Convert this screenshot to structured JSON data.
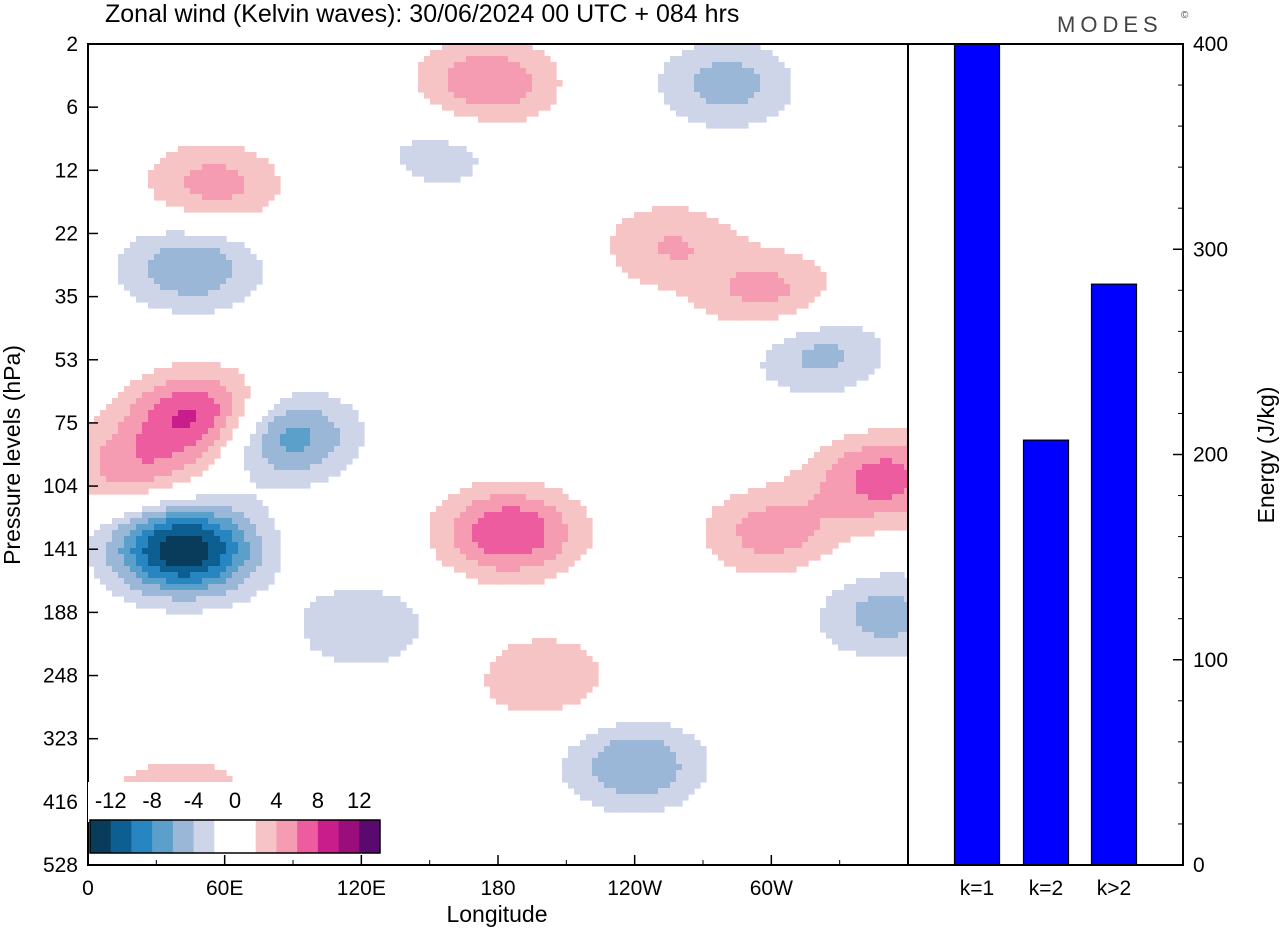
{
  "chart_data": [
    {
      "type": "heatmap",
      "title": "Zonal wind (Kelvin waves):  30/06/2024  00 UTC  + 084 hrs",
      "xlabel": "Longitude",
      "ylabel": "Pressure levels (hPa)",
      "x_ticks": [
        "0",
        "60E",
        "120E",
        "180",
        "120W",
        "60W"
      ],
      "y_ticks": [
        "2",
        "6",
        "12",
        "22",
        "35",
        "53",
        "75",
        "104",
        "141",
        "188",
        "248",
        "323",
        "416",
        "528"
      ],
      "colorbar": {
        "labels": [
          "-12",
          "-8",
          "-4",
          "0",
          "4",
          "8",
          "12"
        ],
        "colors": [
          "#083c5a",
          "#0d5f91",
          "#2785c2",
          "#5b9fcb",
          "#9ab7d8",
          "#cfd5e8",
          "#ffffff",
          "#ffffff",
          "#f6c4c4",
          "#f59cb3",
          "#ec5c9f",
          "#c91d8c",
          "#9a0e7c",
          "#5a0a6e"
        ]
      },
      "blobs": [
        {
          "lon": 42,
          "p": 141,
          "v": -14
        },
        {
          "lon": 85,
          "p": 80,
          "v": -8
        },
        {
          "lon": 45,
          "p": 28,
          "v": -6
        },
        {
          "lon": 50,
          "p": 72,
          "v": 9
        },
        {
          "lon": 20,
          "p": 95,
          "v": 5
        },
        {
          "lon": 55,
          "p": 14,
          "v": 5
        },
        {
          "lon": 175,
          "p": 4,
          "v": 6
        },
        {
          "lon": 280,
          "p": 4,
          "v": -5
        },
        {
          "lon": 185,
          "p": 130,
          "v": 8
        },
        {
          "lon": 200,
          "p": 250,
          "v": 4
        },
        {
          "lon": 300,
          "p": 130,
          "v": 5
        },
        {
          "lon": 350,
          "p": 100,
          "v": 7
        },
        {
          "lon": 300,
          "p": 35,
          "v": 5
        },
        {
          "lon": 320,
          "p": 50,
          "v": -5
        },
        {
          "lon": 155,
          "p": 10,
          "v": -3
        },
        {
          "lon": 255,
          "p": 24,
          "v": 4
        },
        {
          "lon": 240,
          "p": 360,
          "v": -6
        },
        {
          "lon": 350,
          "p": 190,
          "v": -5
        },
        {
          "lon": 40,
          "p": 420,
          "v": 5
        },
        {
          "lon": 120,
          "p": 200,
          "v": -4
        }
      ]
    },
    {
      "type": "bar",
      "ylabel": "Energy (J/kg)",
      "categories": [
        "k=1",
        "k=2",
        "k>2"
      ],
      "values": [
        400,
        207,
        283
      ],
      "ylim": [
        0,
        400
      ],
      "y_ticks": [
        "0",
        "100",
        "200",
        "300",
        "400"
      ],
      "bar_color": "#0000ff"
    }
  ],
  "brand": "MODES",
  "brand_mark": "©"
}
